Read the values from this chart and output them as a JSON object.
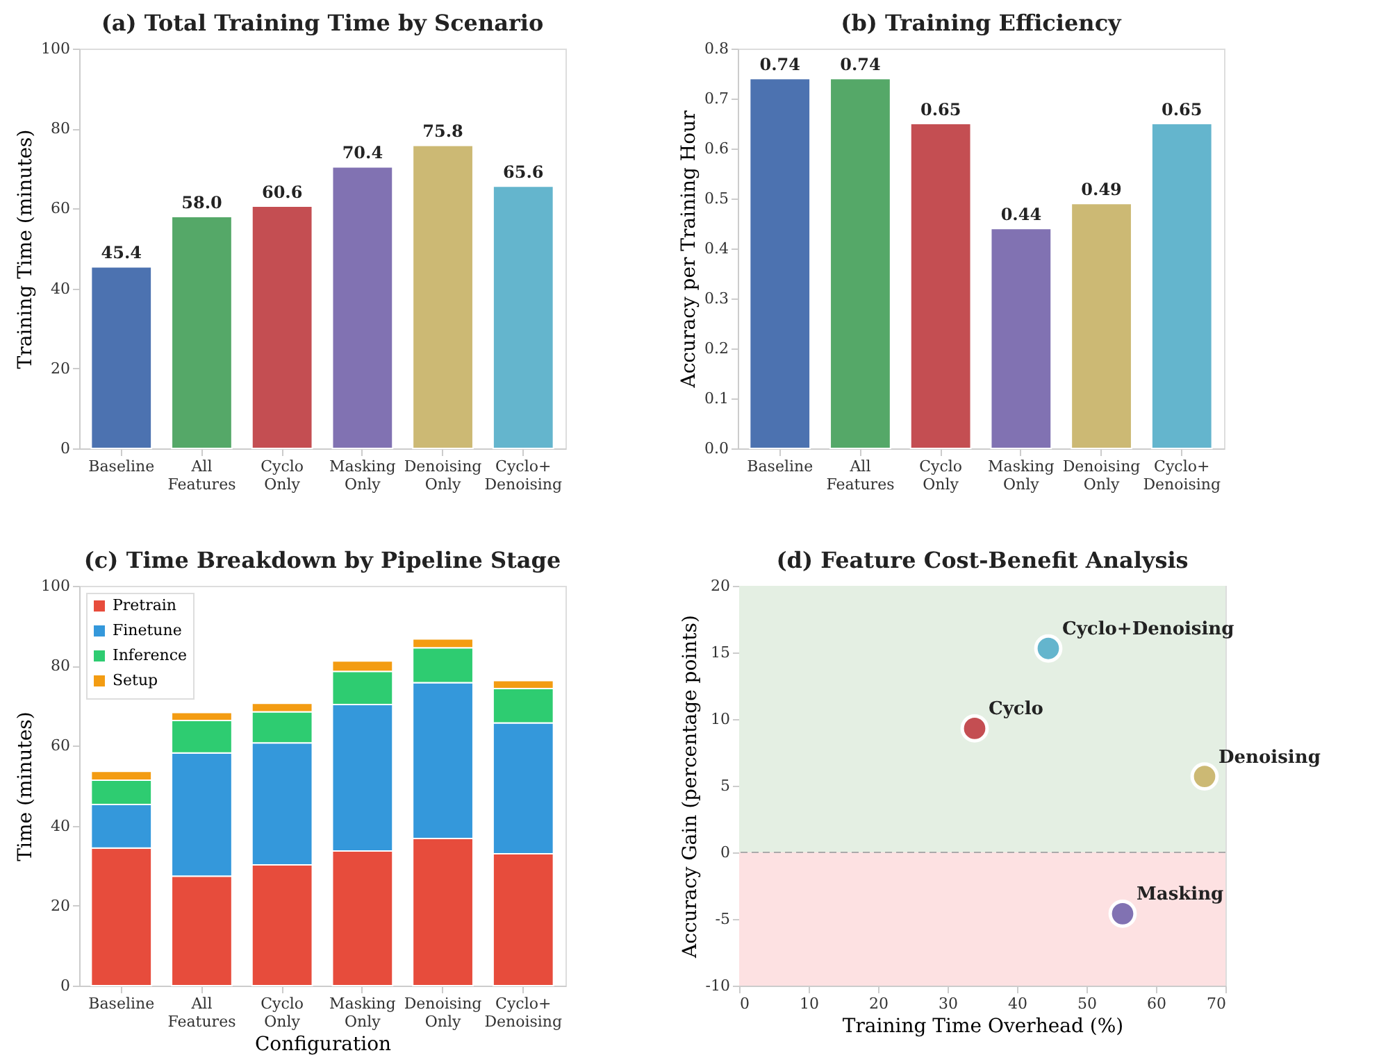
{
  "chart_data": [
    {
      "type": "bar",
      "title": "(a) Total Training Time by Scenario",
      "ylabel": "Training Time (minutes)",
      "categories": [
        "Baseline",
        "All\nFeatures",
        "Cyclo\nOnly",
        "Masking\nOnly",
        "Denoising\nOnly",
        "Cyclo+\nDenoising"
      ],
      "values": [
        45.4,
        58.0,
        60.6,
        70.4,
        75.8,
        65.6
      ],
      "value_labels": [
        "45.4",
        "58.0",
        "60.6",
        "70.4",
        "75.8",
        "65.6"
      ],
      "colors": [
        "#4c72b0",
        "#55a868",
        "#c44e52",
        "#8172b2",
        "#ccb974",
        "#64b5cd"
      ],
      "ylim": [
        0,
        100
      ],
      "yticks": [
        0,
        20,
        40,
        60,
        80,
        100
      ],
      "grid": false
    },
    {
      "type": "bar",
      "title": "(b) Training Efficiency",
      "ylabel": "Accuracy per Training Hour",
      "categories": [
        "Baseline",
        "All\nFeatures",
        "Cyclo\nOnly",
        "Masking\nOnly",
        "Denoising\nOnly",
        "Cyclo+\nDenoising"
      ],
      "values": [
        0.74,
        0.74,
        0.65,
        0.44,
        0.49,
        0.65
      ],
      "value_labels": [
        "0.74",
        "0.74",
        "0.65",
        "0.44",
        "0.49",
        "0.65"
      ],
      "colors": [
        "#4c72b0",
        "#55a868",
        "#c44e52",
        "#8172b2",
        "#ccb974",
        "#64b5cd"
      ],
      "ylim": [
        0,
        0.8
      ],
      "yticks": [
        {
          "value": 0,
          "label": "0.0"
        },
        0.1,
        0.2,
        0.3,
        0.4,
        0.5,
        0.6,
        0.7,
        0.8
      ],
      "grid": false
    },
    {
      "type": "bar",
      "stacked": true,
      "title": "(c) Time Breakdown by Pipeline Stage",
      "xlabel": "Configuration",
      "ylabel": "Time (minutes)",
      "categories": [
        "Baseline",
        "All\nFeatures",
        "Cyclo\nOnly",
        "Masking\nOnly",
        "Denoising\nOnly",
        "Cyclo+\nDenoising"
      ],
      "series": [
        {
          "name": "Pretrain",
          "color": "#e74c3c",
          "values": [
            34.4,
            27.4,
            30.2,
            33.7,
            36.8,
            33.0
          ]
        },
        {
          "name": "Finetune",
          "color": "#3498db",
          "values": [
            10.9,
            30.8,
            30.5,
            36.6,
            39.0,
            32.7
          ]
        },
        {
          "name": "Inference",
          "color": "#2ecc71",
          "values": [
            6.1,
            8.1,
            7.8,
            8.3,
            8.7,
            8.6
          ]
        },
        {
          "name": "Setup",
          "color": "#f39c12",
          "values": [
            2.2,
            2.0,
            2.1,
            2.6,
            2.2,
            2.0
          ]
        }
      ],
      "ylim": [
        0,
        100
      ],
      "yticks": [
        0,
        20,
        40,
        60,
        80,
        100
      ],
      "grid": false,
      "legend": "top left"
    },
    {
      "type": "scatter",
      "title": "(d) Feature Cost-Benefit Analysis",
      "xlabel": "Training Time Overhead (%)",
      "ylabel": "Accuracy Gain (percentage points)",
      "series": [
        {
          "name": "Cyclo",
          "color": "#c44e52",
          "x": [
            33.9
          ],
          "values": [
            9.3
          ]
        },
        {
          "name": "Masking",
          "color": "#8172b2",
          "x": [
            55.2
          ],
          "values": [
            -4.6
          ]
        },
        {
          "name": "Denoising",
          "color": "#ccb974",
          "x": [
            67.0
          ],
          "values": [
            5.7
          ]
        },
        {
          "name": "Cyclo+Denoising",
          "color": "#64b5cd",
          "x": [
            44.5
          ],
          "values": [
            15.3
          ]
        }
      ],
      "xlim": [
        0,
        70
      ],
      "xticks": [
        0,
        10,
        20,
        30,
        40,
        50,
        60,
        70
      ],
      "ylim": [
        -10,
        20
      ],
      "yticks": [
        -10,
        -5,
        0,
        5,
        10,
        15,
        20
      ],
      "bands": [
        {
          "axis": "y",
          "from": 0,
          "to": 20,
          "color": "#e4efe3"
        },
        {
          "axis": "y",
          "from": -10,
          "to": 0,
          "color": "#fde1e2"
        }
      ],
      "ref_lines": [
        {
          "axis": "y",
          "value": 0,
          "color": "#aaaaaa",
          "line_style": "dashed"
        }
      ],
      "grid": false,
      "marker": "circle"
    }
  ]
}
